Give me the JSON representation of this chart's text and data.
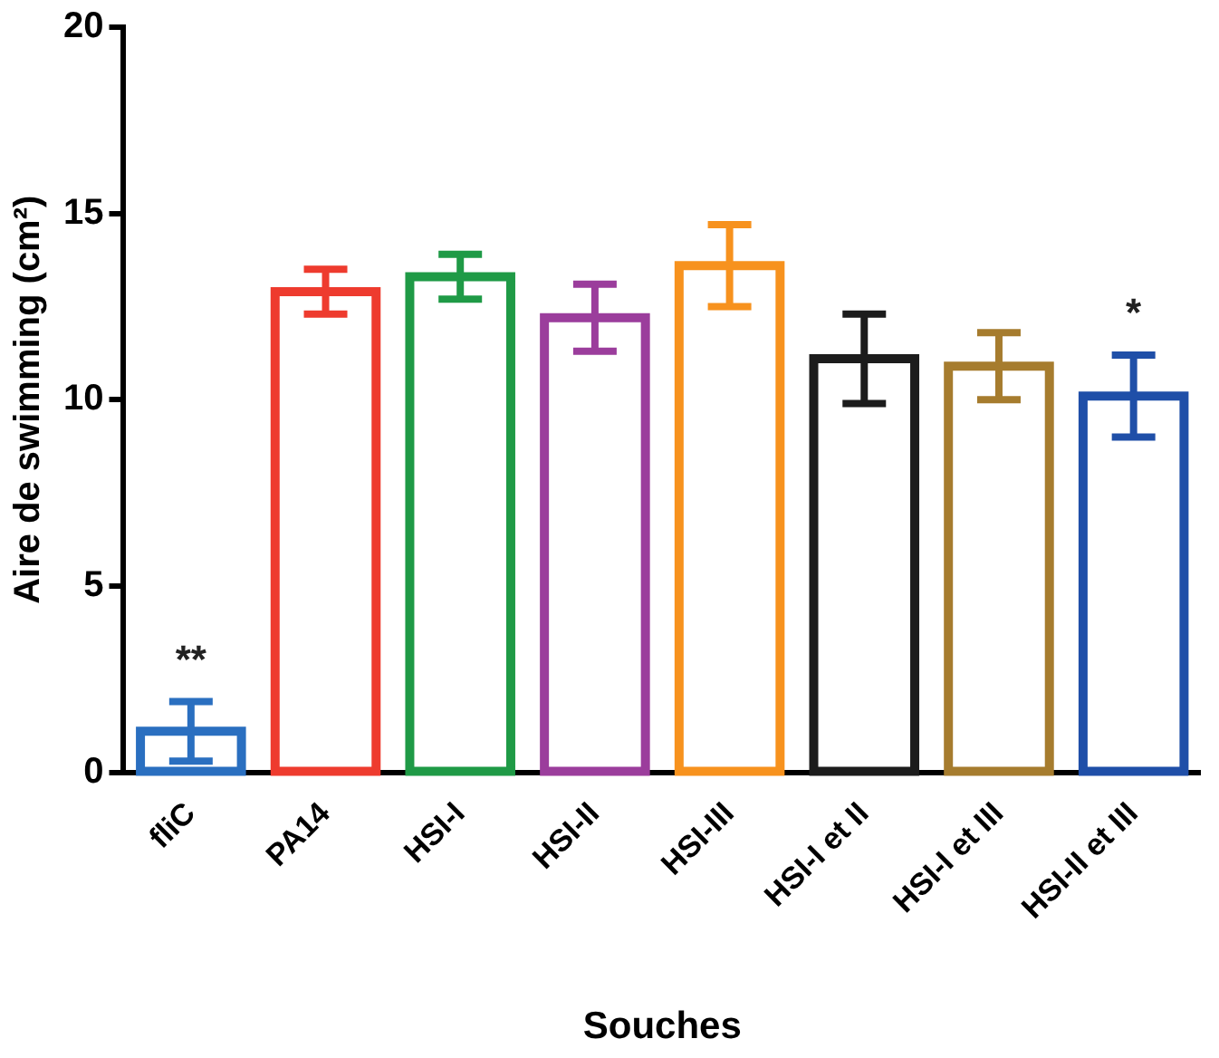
{
  "chart_data": {
    "type": "bar",
    "xlabel": "Souches",
    "ylabel": "Aire de swimming (cm²)",
    "categories": [
      "fliC",
      "PA14",
      "HSI-I",
      "HSI-II",
      "HSI-III",
      "HSI-I et II",
      "HSI-I et III",
      "HSI-II et III"
    ],
    "values": [
      1.1,
      12.9,
      13.3,
      12.2,
      13.6,
      11.1,
      10.9,
      10.1
    ],
    "errors": [
      0.8,
      0.6,
      0.6,
      0.9,
      1.1,
      1.2,
      0.9,
      1.1
    ],
    "colors": [
      "#2a6fc0",
      "#ee3b2e",
      "#1f9a46",
      "#9b3d9c",
      "#f7921e",
      "#1c1c1c",
      "#a67c2e",
      "#1f4fa8"
    ],
    "ylim": [
      0,
      20
    ],
    "yticks": [
      0,
      5,
      10,
      15,
      20
    ],
    "grid": false,
    "legend": false,
    "annotations": [
      "**",
      "*"
    ]
  }
}
